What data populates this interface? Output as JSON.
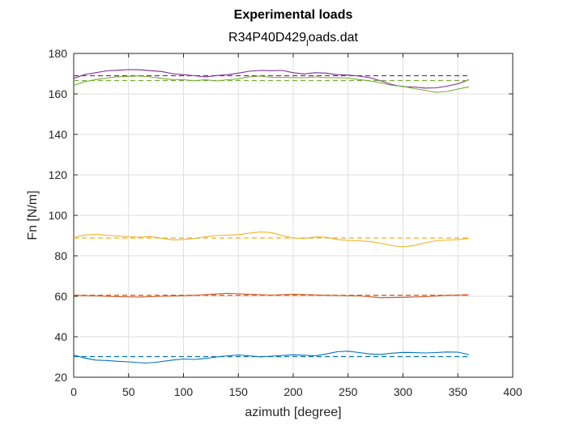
{
  "chart_data": {
    "type": "line",
    "title": "Experimental loads",
    "subtitle": "R34P40D429_loads.dat",
    "subtitle_parts": {
      "before": "R34P40D429",
      "sub": "l",
      "after": "oads.dat"
    },
    "xlabel": "azimuth [degree]",
    "ylabel": "Fn [N/m]",
    "xlim": [
      0,
      400
    ],
    "ylim": [
      20,
      180
    ],
    "xticks": [
      0,
      50,
      100,
      150,
      200,
      250,
      300,
      350,
      400
    ],
    "yticks": [
      20,
      40,
      60,
      80,
      100,
      120,
      140,
      160,
      180
    ],
    "grid": true,
    "series": [
      {
        "color": "#0072BD",
        "mean": 30.2,
        "x": [
          0,
          10,
          20,
          30,
          40,
          50,
          60,
          65,
          75,
          90,
          100,
          110,
          120,
          130,
          140,
          150,
          160,
          170,
          180,
          190,
          200,
          210,
          220,
          230,
          240,
          250,
          260,
          270,
          280,
          290,
          300,
          310,
          320,
          330,
          340,
          350,
          360
        ],
        "y": [
          31,
          29.5,
          28.5,
          28.3,
          27.9,
          27.6,
          27.2,
          27,
          27.4,
          28.5,
          29,
          28.8,
          29.3,
          30,
          30.6,
          31,
          30.6,
          30.1,
          30.4,
          30.8,
          31.1,
          30.9,
          30.6,
          31.5,
          32.6,
          32.9,
          32.2,
          31.5,
          31.3,
          31.9,
          32.3,
          32.2,
          32,
          32.2,
          32.5,
          32.4,
          31.2
        ]
      },
      {
        "color": "#D95319",
        "mean": 60.5,
        "x": [
          0,
          20,
          40,
          60,
          80,
          100,
          120,
          140,
          160,
          180,
          200,
          220,
          240,
          260,
          280,
          300,
          320,
          340,
          360
        ],
        "y": [
          60.5,
          60.2,
          59.8,
          59.6,
          60,
          60.3,
          60.8,
          61.5,
          61,
          60.6,
          61,
          60.7,
          60.4,
          60.2,
          59.3,
          59.5,
          59.8,
          60.5,
          60.8
        ]
      },
      {
        "color": "#EDB120",
        "mean": 88.8,
        "x": [
          0,
          10,
          20,
          30,
          40,
          50,
          60,
          70,
          80,
          90,
          100,
          110,
          120,
          130,
          140,
          150,
          160,
          170,
          180,
          190,
          200,
          210,
          220,
          230,
          240,
          250,
          260,
          270,
          280,
          290,
          300,
          310,
          320,
          330,
          340,
          350,
          360
        ],
        "y": [
          89,
          90.3,
          90.6,
          90.2,
          89.8,
          89.4,
          89.2,
          89.5,
          88.7,
          87.9,
          88.1,
          88.6,
          89.4,
          90,
          90.2,
          90.5,
          91.2,
          91.8,
          91.5,
          90,
          88.8,
          88.6,
          89.3,
          89.2,
          88.1,
          87.6,
          87.4,
          87.1,
          86.2,
          85,
          84.4,
          85.1,
          86.4,
          87.4,
          87.8,
          88,
          88.6
        ]
      },
      {
        "color": "#7E2F8E",
        "mean": 169,
        "x": [
          0,
          10,
          20,
          30,
          40,
          50,
          60,
          70,
          80,
          90,
          100,
          110,
          120,
          130,
          140,
          150,
          160,
          170,
          180,
          190,
          200,
          210,
          220,
          230,
          240,
          250,
          260,
          270,
          280,
          290,
          300,
          310,
          320,
          330,
          340,
          350,
          360
        ],
        "y": [
          167.7,
          169.6,
          170.5,
          171.4,
          171.7,
          172,
          171.9,
          171.5,
          171.1,
          170,
          169.5,
          169,
          168.4,
          169.1,
          169.5,
          170.3,
          171.2,
          171.6,
          171.5,
          171.6,
          170.5,
          169.9,
          170.5,
          170.3,
          169.5,
          169.3,
          168.8,
          168,
          166.4,
          164.6,
          163.6,
          163.4,
          162.9,
          163,
          163.8,
          165,
          167
        ]
      },
      {
        "color": "#77AC30",
        "mean": 166.6,
        "x": [
          0,
          10,
          20,
          30,
          40,
          50,
          60,
          70,
          80,
          90,
          100,
          110,
          120,
          130,
          140,
          150,
          160,
          170,
          180,
          190,
          200,
          210,
          220,
          230,
          240,
          250,
          260,
          270,
          280,
          290,
          300,
          310,
          320,
          330,
          340,
          350,
          360
        ],
        "y": [
          164.2,
          166,
          167.1,
          167.8,
          168.5,
          168.7,
          168.9,
          168.4,
          167.7,
          167.1,
          167,
          166.5,
          167,
          166.4,
          167,
          167.5,
          168.5,
          168.8,
          168.2,
          168.2,
          168.1,
          168,
          168.4,
          168,
          168,
          167.8,
          167.1,
          166.4,
          165.4,
          164.2,
          163.8,
          162.6,
          161.8,
          160.8,
          161.2,
          162.4,
          163.5
        ]
      }
    ]
  }
}
